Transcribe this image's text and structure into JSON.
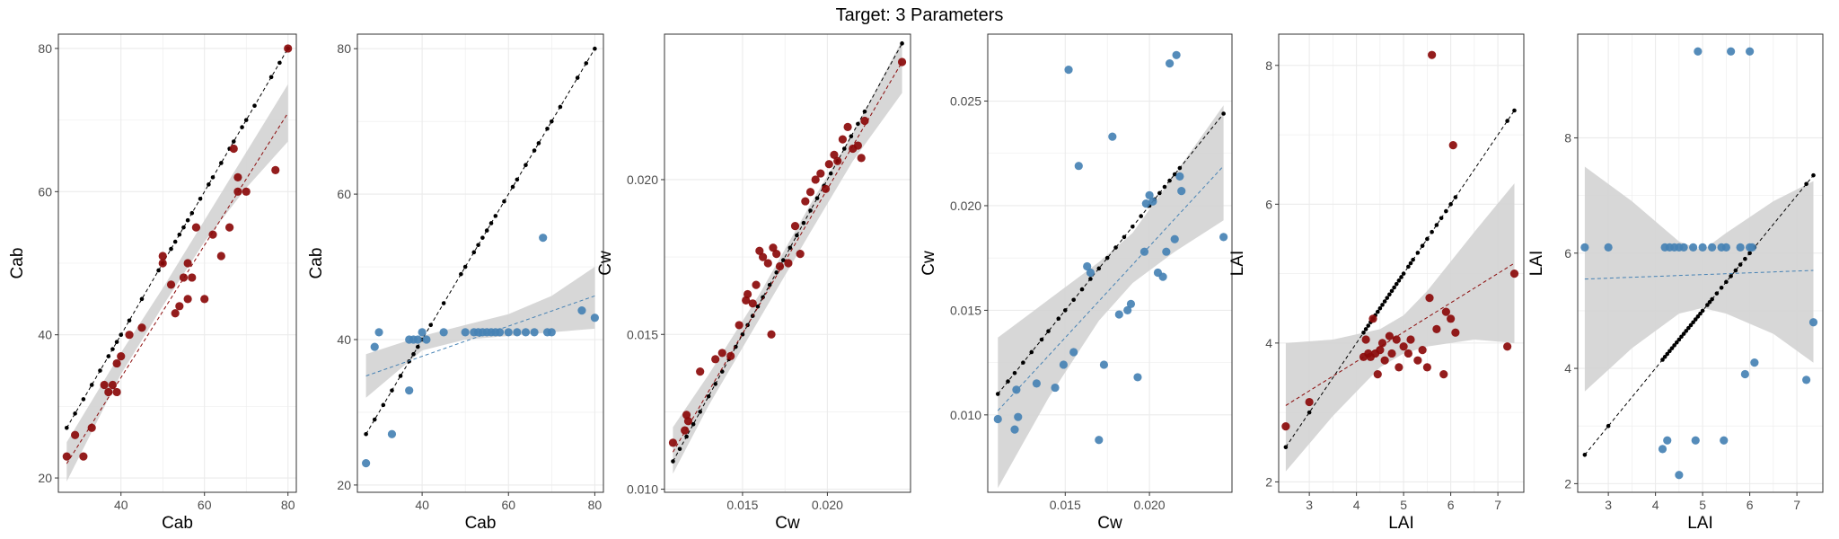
{
  "figure_title": "Target: 3 Parameters",
  "colors": {
    "red": "#8b0a0a",
    "blue": "#4682b4",
    "band": "#d3d3d3",
    "ref": "#000000",
    "grid": "#ebebeb",
    "border": "#333333"
  },
  "chart_data": [
    {
      "type": "scatter",
      "xlabel": "Cab",
      "ylabel": "Cab",
      "xlim": [
        25,
        82
      ],
      "ylim": [
        18,
        82
      ],
      "xticks": [
        40,
        60,
        80
      ],
      "yticks": [
        20,
        40,
        60,
        80
      ],
      "point_color": "red",
      "points": {
        "x": [
          27,
          29,
          31,
          33,
          36,
          37,
          38,
          39,
          39,
          40,
          42,
          45,
          50,
          50,
          52,
          53,
          54,
          55,
          56,
          56,
          57,
          58,
          60,
          62,
          64,
          66,
          67,
          68,
          68,
          70,
          77,
          80
        ],
        "y": [
          23,
          26,
          23,
          27,
          33,
          32,
          33,
          32,
          36,
          37,
          40,
          41,
          50,
          51,
          47,
          43,
          44,
          48,
          45,
          50,
          48,
          55,
          45,
          54,
          51,
          55,
          66,
          60,
          62,
          60,
          63,
          80
        ]
      },
      "reference": {
        "x": [
          27,
          29,
          31,
          33,
          35,
          37,
          38,
          39,
          40,
          42,
          45,
          49,
          50,
          52,
          53,
          54,
          55,
          56,
          57,
          59,
          61,
          62,
          64,
          66,
          67,
          69,
          70,
          72,
          76,
          78,
          80
        ],
        "y": [
          27,
          29,
          31,
          33,
          35,
          37,
          38,
          39,
          40,
          42,
          45,
          49,
          50,
          52,
          53,
          54,
          55,
          56,
          57,
          59,
          61,
          62,
          64,
          66,
          67,
          69,
          70,
          72,
          76,
          78,
          80
        ]
      },
      "fit": {
        "x": [
          27,
          80
        ],
        "y": [
          22,
          71
        ]
      },
      "band": {
        "x": [
          27,
          40,
          50,
          60,
          70,
          80
        ],
        "lower": [
          19.5,
          34.5,
          44,
          53,
          60.5,
          67
        ],
        "upper": [
          25,
          37.5,
          46.5,
          56,
          65.5,
          75
        ]
      }
    },
    {
      "type": "scatter",
      "xlabel": "Cab",
      "ylabel": "Cab",
      "xlim": [
        25,
        82
      ],
      "ylim": [
        19,
        82
      ],
      "xticks": [
        40,
        60,
        80
      ],
      "yticks": [
        20,
        40,
        60,
        80
      ],
      "point_color": "blue",
      "points": {
        "x": [
          27,
          29,
          30,
          33,
          37,
          37,
          38,
          39,
          40,
          41,
          45,
          50,
          52,
          53,
          54,
          55,
          56,
          57,
          58,
          60,
          62,
          64,
          66,
          68,
          69,
          70,
          77,
          80
        ],
        "y": [
          23,
          39,
          41,
          27,
          40,
          33,
          40,
          40,
          41,
          40,
          41,
          41,
          41,
          41,
          41,
          41,
          41,
          41,
          41,
          41,
          41,
          41,
          41,
          54,
          41,
          41,
          44,
          43
        ]
      },
      "reference": {
        "x": [
          27,
          29,
          31,
          33,
          35,
          37,
          38,
          39,
          40,
          42,
          45,
          49,
          50,
          52,
          53,
          54,
          55,
          56,
          57,
          59,
          61,
          62,
          64,
          66,
          67,
          69,
          70,
          72,
          76,
          78,
          80
        ],
        "y": [
          27,
          29,
          31,
          33,
          35,
          37,
          38,
          39,
          40,
          42,
          45,
          49,
          50,
          52,
          53,
          54,
          55,
          56,
          57,
          59,
          61,
          62,
          64,
          66,
          67,
          69,
          70,
          72,
          76,
          78,
          80
        ]
      },
      "fit": {
        "x": [
          27,
          80
        ],
        "y": [
          35,
          46
        ]
      },
      "band": {
        "x": [
          27,
          40,
          50,
          60,
          70,
          80
        ],
        "lower": [
          32,
          38.5,
          40,
          40.5,
          41,
          41.5
        ],
        "upper": [
          38,
          40.5,
          42,
          43.5,
          46,
          50
        ]
      }
    },
    {
      "type": "scatter",
      "xlabel": "Cw",
      "ylabel": "Cw",
      "xlim": [
        0.0104,
        0.0249
      ],
      "ylim": [
        0.0099,
        0.0247
      ],
      "xticks": [
        0.015,
        0.02
      ],
      "yticks": [
        0.01,
        0.015,
        0.02
      ],
      "xtick_labels": [
        "0.015",
        "0.020"
      ],
      "ytick_labels": [
        "0.010",
        "0.015",
        "0.020"
      ],
      "point_color": "red",
      "points": {
        "x": [
          0.0109,
          0.0116,
          0.0117,
          0.0118,
          0.0125,
          0.0134,
          0.0138,
          0.0143,
          0.0148,
          0.0152,
          0.0153,
          0.0156,
          0.0158,
          0.016,
          0.0162,
          0.0165,
          0.0167,
          0.0168,
          0.017,
          0.0172,
          0.0177,
          0.0181,
          0.0184,
          0.0187,
          0.019,
          0.0193,
          0.0196,
          0.0199,
          0.0201,
          0.0204,
          0.0206,
          0.0209,
          0.0212,
          0.0215,
          0.0218,
          0.022,
          0.0222,
          0.0244
        ],
        "y": [
          0.0115,
          0.0119,
          0.0124,
          0.0122,
          0.0138,
          0.0142,
          0.0144,
          0.0143,
          0.0153,
          0.0161,
          0.0163,
          0.016,
          0.0166,
          0.0177,
          0.0175,
          0.0173,
          0.015,
          0.0178,
          0.0176,
          0.0172,
          0.0173,
          0.0185,
          0.0176,
          0.0193,
          0.0196,
          0.02,
          0.0202,
          0.0197,
          0.0205,
          0.0208,
          0.0206,
          0.0213,
          0.0217,
          0.021,
          0.0211,
          0.0207,
          0.0219,
          0.0238
        ]
      },
      "reference": {
        "x": [
          0.0109,
          0.0113,
          0.0117,
          0.0121,
          0.0125,
          0.013,
          0.0134,
          0.0138,
          0.0142,
          0.0146,
          0.015,
          0.0153,
          0.0156,
          0.0159,
          0.0162,
          0.0166,
          0.017,
          0.0174,
          0.0178,
          0.0182,
          0.0186,
          0.019,
          0.0194,
          0.0198,
          0.0202,
          0.0206,
          0.021,
          0.0214,
          0.0218,
          0.0222,
          0.0244
        ],
        "y": [
          0.0109,
          0.0113,
          0.0117,
          0.0121,
          0.0125,
          0.013,
          0.0134,
          0.0138,
          0.0142,
          0.0146,
          0.015,
          0.0153,
          0.0156,
          0.0159,
          0.0162,
          0.0166,
          0.017,
          0.0174,
          0.0178,
          0.0182,
          0.0186,
          0.019,
          0.0194,
          0.0198,
          0.0202,
          0.0206,
          0.021,
          0.0214,
          0.0218,
          0.0222,
          0.0244
        ]
      },
      "fit": {
        "x": [
          0.0109,
          0.0244
        ],
        "y": [
          0.0112,
          0.0238
        ]
      },
      "band": {
        "x": [
          0.0109,
          0.013,
          0.016,
          0.019,
          0.0215,
          0.0244
        ],
        "lower": [
          0.0105,
          0.0127,
          0.0155,
          0.0183,
          0.0206,
          0.0228
        ],
        "upper": [
          0.012,
          0.0137,
          0.0163,
          0.0192,
          0.0215,
          0.0245
        ]
      }
    },
    {
      "type": "scatter",
      "xlabel": "Cw",
      "ylabel": "Cw",
      "xlim": [
        0.0104,
        0.0249
      ],
      "ylim": [
        0.0063,
        0.0282
      ],
      "xticks": [
        0.015,
        0.02
      ],
      "yticks": [
        0.01,
        0.015,
        0.02,
        0.025
      ],
      "xtick_labels": [
        "0.015",
        "0.020"
      ],
      "ytick_labels": [
        "0.010",
        "0.015",
        "0.020",
        "0.025"
      ],
      "point_color": "blue",
      "points": {
        "x": [
          0.011,
          0.012,
          0.0121,
          0.0122,
          0.0133,
          0.0144,
          0.0149,
          0.0152,
          0.0155,
          0.0158,
          0.0163,
          0.0165,
          0.017,
          0.0173,
          0.0178,
          0.0182,
          0.0187,
          0.0189,
          0.0193,
          0.0197,
          0.0198,
          0.02,
          0.0202,
          0.0205,
          0.0208,
          0.021,
          0.0212,
          0.0215,
          0.0216,
          0.0218,
          0.0219,
          0.0244
        ],
        "y": [
          0.0098,
          0.0093,
          0.0112,
          0.0099,
          0.0115,
          0.0113,
          0.0124,
          0.0265,
          0.013,
          0.0219,
          0.0171,
          0.0168,
          0.0088,
          0.0124,
          0.0233,
          0.0148,
          0.015,
          0.0153,
          0.0118,
          0.0178,
          0.0201,
          0.0205,
          0.0202,
          0.0168,
          0.0166,
          0.0178,
          0.0268,
          0.0184,
          0.0272,
          0.0214,
          0.0207,
          0.0185
        ]
      },
      "reference": {
        "x": [
          0.011,
          0.0116,
          0.012,
          0.0125,
          0.013,
          0.0136,
          0.014,
          0.0146,
          0.015,
          0.0155,
          0.016,
          0.0165,
          0.017,
          0.0175,
          0.018,
          0.0185,
          0.019,
          0.0195,
          0.02,
          0.0203,
          0.0206,
          0.0209,
          0.0212,
          0.0215,
          0.0218,
          0.0244
        ],
        "y": [
          0.011,
          0.0116,
          0.012,
          0.0125,
          0.013,
          0.0136,
          0.014,
          0.0146,
          0.015,
          0.0155,
          0.016,
          0.0165,
          0.017,
          0.0175,
          0.018,
          0.0185,
          0.019,
          0.0195,
          0.02,
          0.0203,
          0.0206,
          0.0209,
          0.0212,
          0.0215,
          0.0218,
          0.0244
        ]
      },
      "fit": {
        "x": [
          0.011,
          0.0244
        ],
        "y": [
          0.0102,
          0.0219
        ]
      },
      "band": {
        "x": [
          0.011,
          0.014,
          0.017,
          0.019,
          0.0215,
          0.0244
        ],
        "lower": [
          0.0065,
          0.0108,
          0.0145,
          0.0163,
          0.0178,
          0.0193
        ],
        "upper": [
          0.0137,
          0.0155,
          0.0173,
          0.0187,
          0.0215,
          0.0248
        ]
      }
    },
    {
      "type": "scatter",
      "xlabel": "LAI",
      "ylabel": "LAI",
      "xlim": [
        2.35,
        7.55
      ],
      "ylim": [
        1.85,
        8.45
      ],
      "xticks": [
        3,
        4,
        5,
        6,
        7
      ],
      "yticks": [
        2,
        4,
        6,
        8
      ],
      "point_color": "red",
      "points": {
        "x": [
          2.5,
          3.0,
          4.15,
          4.2,
          4.25,
          4.3,
          4.35,
          4.4,
          4.45,
          4.5,
          4.55,
          4.6,
          4.7,
          4.75,
          4.85,
          4.9,
          5.0,
          5.1,
          5.15,
          5.3,
          5.4,
          5.5,
          5.55,
          5.6,
          5.7,
          5.85,
          5.9,
          6.0,
          6.05,
          6.1,
          7.2,
          7.35
        ],
        "y": [
          2.8,
          3.15,
          3.8,
          4.05,
          3.85,
          3.8,
          4.35,
          3.85,
          3.55,
          3.9,
          4.0,
          3.75,
          4.1,
          3.85,
          4.05,
          3.65,
          3.95,
          3.85,
          4.05,
          3.75,
          3.9,
          3.65,
          4.65,
          8.15,
          4.2,
          3.55,
          4.45,
          4.35,
          6.85,
          4.15,
          3.95,
          5.0
        ]
      },
      "reference": {
        "x": [
          2.5,
          3.0,
          4.15,
          4.2,
          4.25,
          4.3,
          4.35,
          4.4,
          4.45,
          4.5,
          4.55,
          4.6,
          4.65,
          4.7,
          4.75,
          4.8,
          4.85,
          4.9,
          4.95,
          5.0,
          5.1,
          5.15,
          5.2,
          5.3,
          5.4,
          5.5,
          5.6,
          5.7,
          5.8,
          5.9,
          6.0,
          6.1,
          7.2,
          7.35
        ],
        "y": [
          2.5,
          3.0,
          4.15,
          4.2,
          4.25,
          4.3,
          4.35,
          4.4,
          4.45,
          4.5,
          4.55,
          4.6,
          4.65,
          4.7,
          4.75,
          4.8,
          4.85,
          4.9,
          4.95,
          5.0,
          5.1,
          5.15,
          5.2,
          5.3,
          5.4,
          5.5,
          5.6,
          5.7,
          5.8,
          5.9,
          6.0,
          6.1,
          7.2,
          7.35
        ]
      },
      "fit": {
        "x": [
          2.5,
          7.35
        ],
        "y": [
          3.1,
          5.15
        ]
      },
      "band": {
        "x": [
          2.5,
          3.5,
          4.5,
          5.0,
          5.5,
          6.5,
          7.35
        ],
        "lower": [
          2.15,
          2.95,
          3.65,
          3.85,
          3.95,
          4.05,
          4.0
        ],
        "upper": [
          4.0,
          4.05,
          4.2,
          4.4,
          4.75,
          5.6,
          6.3
        ]
      }
    },
    {
      "type": "scatter",
      "xlabel": "LAI",
      "ylabel": "LAI",
      "xlim": [
        2.35,
        7.55
      ],
      "ylim": [
        1.85,
        9.8
      ],
      "xticks": [
        3,
        4,
        5,
        6,
        7
      ],
      "yticks": [
        2,
        4,
        6,
        8
      ],
      "point_color": "blue",
      "points": {
        "x": [
          2.5,
          3.0,
          4.15,
          4.2,
          4.25,
          4.3,
          4.4,
          4.5,
          4.5,
          4.6,
          4.8,
          4.85,
          4.9,
          5.0,
          5.2,
          5.4,
          5.45,
          5.5,
          5.6,
          5.8,
          5.9,
          6.0,
          6.0,
          6.05,
          6.1,
          7.2,
          7.35
        ],
        "y": [
          6.1,
          6.1,
          2.6,
          6.1,
          2.75,
          6.1,
          6.1,
          2.15,
          6.1,
          6.1,
          6.1,
          2.75,
          9.5,
          6.1,
          6.1,
          6.1,
          2.75,
          6.1,
          9.5,
          6.1,
          3.9,
          6.1,
          9.5,
          6.1,
          4.1,
          3.8,
          4.8
        ]
      },
      "reference": {
        "x": [
          2.5,
          3.0,
          4.15,
          4.2,
          4.25,
          4.3,
          4.35,
          4.4,
          4.45,
          4.5,
          4.55,
          4.6,
          4.65,
          4.7,
          4.75,
          4.8,
          4.85,
          4.9,
          4.95,
          5.0,
          5.1,
          5.15,
          5.2,
          5.3,
          5.4,
          5.5,
          5.6,
          5.7,
          5.8,
          5.9,
          6.0,
          6.1,
          7.2,
          7.35
        ],
        "y": [
          2.5,
          3.0,
          4.15,
          4.2,
          4.25,
          4.3,
          4.35,
          4.4,
          4.45,
          4.5,
          4.55,
          4.6,
          4.65,
          4.7,
          4.75,
          4.8,
          4.85,
          4.9,
          4.95,
          5.0,
          5.1,
          5.15,
          5.2,
          5.3,
          5.4,
          5.5,
          5.6,
          5.7,
          5.8,
          5.9,
          6.0,
          6.1,
          7.2,
          7.35
        ]
      },
      "fit": {
        "x": [
          2.5,
          7.35
        ],
        "y": [
          5.55,
          5.7
        ]
      },
      "band": {
        "x": [
          2.5,
          3.5,
          4.5,
          5.0,
          5.5,
          6.5,
          7.35
        ],
        "lower": [
          3.6,
          4.35,
          4.95,
          5.05,
          4.95,
          4.6,
          4.1
        ],
        "upper": [
          7.5,
          6.9,
          6.2,
          6.05,
          6.35,
          6.9,
          7.25
        ]
      }
    }
  ]
}
